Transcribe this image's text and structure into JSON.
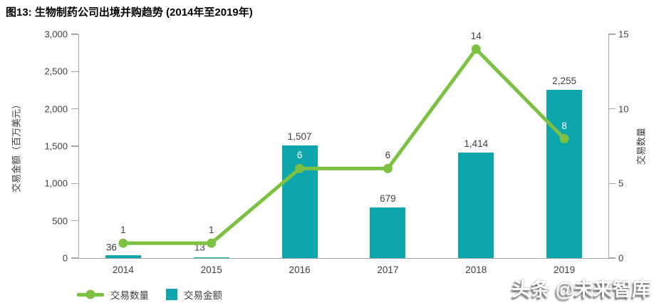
{
  "title": "图13: 生物制药公司出境并购趋势 (2014年至2019年)",
  "watermark": {
    "text": "头条 @未来智库"
  },
  "colors": {
    "bar": "#0DA6AC",
    "line": "#7DC142",
    "axis_line": "#A6A6A6",
    "tick_text": "#404040",
    "title_text": "#000000",
    "background": "#FFFFFF"
  },
  "chart_data": {
    "type": "combo-bar-line",
    "title": "图13: 生物制药公司出境并购趋势 (2014年至2019年)",
    "categories": [
      "2014",
      "2015",
      "2016",
      "2017",
      "2018",
      "2019"
    ],
    "series": [
      {
        "name": "交易金额",
        "chart_type": "bar",
        "axis": "left",
        "color": "#0DA6AC",
        "values": [
          36,
          13,
          1507,
          679,
          1414,
          2255
        ],
        "value_labels": [
          "36",
          "13",
          "1,507",
          "679",
          "1,414",
          "2,255"
        ]
      },
      {
        "name": "交易数量",
        "chart_type": "line",
        "axis": "right",
        "color": "#7DC142",
        "values": [
          1,
          1,
          6,
          6,
          14,
          8
        ],
        "value_labels": [
          "1",
          "1",
          "6",
          "6",
          "14",
          "8"
        ],
        "value_label_colors": [
          "#404040",
          "#404040",
          "#FFFFFF",
          "#404040",
          "#404040",
          "#FFFFFF"
        ]
      }
    ],
    "left_axis": {
      "title": "交易金额（百万美元）",
      "min": 0,
      "max": 3000,
      "tick_labels": [
        "0",
        "500",
        "1,000",
        "1,500",
        "2,000",
        "2,500",
        "3,000"
      ]
    },
    "right_axis": {
      "title": "交易数量",
      "min": 0,
      "max": 15,
      "tick_labels": [
        "0",
        "5",
        "10",
        "15"
      ]
    },
    "grid": false,
    "legend_position": "bottom-left"
  }
}
